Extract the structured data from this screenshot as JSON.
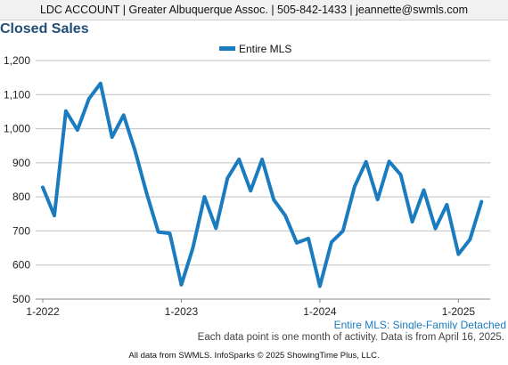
{
  "header": {
    "bar_text": "LDC ACCOUNT | Greater Albuquerque Assoc. | 505-842-1433 | jeannette@swmls.com"
  },
  "page_title": "Closed Sales",
  "footer": {
    "note": "Each data point is one month of activity. Data is from April 16, 2025.",
    "credits": "All data from SWMLS. InfoSparks © 2025 ShowingTime Plus, LLC."
  },
  "colors": {
    "line": "#1a7bbf",
    "title": "#1f4e79",
    "grid": "#c0c0c0",
    "subtitle_text": "#1a7bbf"
  },
  "chart_data": {
    "type": "line",
    "subtitle": "Entire MLS: Single-Family Detached",
    "legend_position": "top-center",
    "grid": true,
    "ylim": [
      500,
      1200
    ],
    "yticks": [
      500,
      600,
      700,
      800,
      900,
      1000,
      1100,
      1200
    ],
    "ytick_labels": [
      "500",
      "600",
      "700",
      "800",
      "900",
      "1,000",
      "1,100",
      "1,200"
    ],
    "xticks": [
      "2022-01",
      "2023-01",
      "2024-01",
      "2025-01"
    ],
    "xtick_labels": [
      "1-2022",
      "1-2023",
      "1-2024",
      "1-2025"
    ],
    "x": [
      "2022-01",
      "2022-02",
      "2022-03",
      "2022-04",
      "2022-05",
      "2022-06",
      "2022-07",
      "2022-08",
      "2022-09",
      "2022-10",
      "2022-11",
      "2022-12",
      "2023-01",
      "2023-02",
      "2023-03",
      "2023-04",
      "2023-05",
      "2023-06",
      "2023-07",
      "2023-08",
      "2023-09",
      "2023-10",
      "2023-11",
      "2023-12",
      "2024-01",
      "2024-02",
      "2024-03",
      "2024-04",
      "2024-05",
      "2024-06",
      "2024-07",
      "2024-08",
      "2024-09",
      "2024-10",
      "2024-11",
      "2024-12",
      "2025-01",
      "2025-02",
      "2025-03"
    ],
    "series": [
      {
        "name": "Entire MLS",
        "values": [
          828,
          745,
          1052,
          996,
          1088,
          1133,
          975,
          1040,
          935,
          810,
          697,
          693,
          542,
          650,
          800,
          708,
          855,
          910,
          818,
          910,
          792,
          745,
          665,
          678,
          538,
          667,
          700,
          830,
          903,
          792,
          904,
          865,
          727,
          820,
          707,
          777,
          632,
          675,
          786
        ]
      }
    ]
  }
}
